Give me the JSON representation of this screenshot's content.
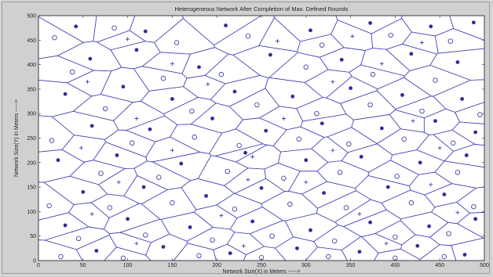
{
  "chart_data": {
    "type": "scatter",
    "title": "Heterogeneous Network After Completion of Max. Defined Rounds",
    "xlabel": "Network Size(X) in Meters ----->",
    "ylabel": "Network Size(Y) in Meters ----->",
    "xlim": [
      0,
      500
    ],
    "ylim": [
      0,
      500
    ],
    "xticks": [
      "0",
      "50",
      "100",
      "150",
      "200",
      "250",
      "300",
      "350",
      "400",
      "450",
      "500"
    ],
    "yticks": [
      "0",
      "50",
      "100",
      "150",
      "200",
      "250",
      "300",
      "350",
      "400",
      "450",
      "500"
    ],
    "grid": false,
    "series": [
      {
        "marker": "filled-circle",
        "points": [
          [
            42,
            478
          ],
          [
            120,
            468
          ],
          [
            210,
            480
          ],
          [
            305,
            470
          ],
          [
            372,
            485
          ],
          [
            440,
            478
          ],
          [
            488,
            486
          ],
          [
            58,
            412
          ],
          [
            110,
            430
          ],
          [
            180,
            395
          ],
          [
            260,
            420
          ],
          [
            340,
            410
          ],
          [
            418,
            422
          ],
          [
            470,
            405
          ],
          [
            30,
            340
          ],
          [
            95,
            355
          ],
          [
            150,
            330
          ],
          [
            220,
            345
          ],
          [
            285,
            335
          ],
          [
            350,
            352
          ],
          [
            408,
            338
          ],
          [
            475,
            330
          ],
          [
            60,
            275
          ],
          [
            125,
            268
          ],
          [
            195,
            290
          ],
          [
            255,
            265
          ],
          [
            318,
            280
          ],
          [
            385,
            270
          ],
          [
            445,
            285
          ],
          [
            490,
            262
          ],
          [
            22,
            205
          ],
          [
            88,
            215
          ],
          [
            160,
            198
          ],
          [
            232,
            220
          ],
          [
            300,
            205
          ],
          [
            362,
            212
          ],
          [
            428,
            200
          ],
          [
            480,
            215
          ],
          [
            50,
            140
          ],
          [
            118,
            150
          ],
          [
            188,
            132
          ],
          [
            250,
            148
          ],
          [
            320,
            138
          ],
          [
            392,
            150
          ],
          [
            455,
            135
          ],
          [
            30,
            72
          ],
          [
            100,
            85
          ],
          [
            170,
            68
          ],
          [
            240,
            80
          ],
          [
            305,
            62
          ],
          [
            372,
            78
          ],
          [
            438,
            70
          ],
          [
            490,
            85
          ],
          [
            65,
            20
          ],
          [
            140,
            28
          ],
          [
            215,
            15
          ],
          [
            290,
            25
          ],
          [
            360,
            18
          ],
          [
            425,
            30
          ],
          [
            478,
            12
          ]
        ]
      },
      {
        "marker": "open-circle",
        "points": [
          [
            18,
            455
          ],
          [
            85,
            475
          ],
          [
            155,
            445
          ],
          [
            235,
            458
          ],
          [
            318,
            440
          ],
          [
            395,
            460
          ],
          [
            462,
            448
          ],
          [
            38,
            385
          ],
          [
            140,
            372
          ],
          [
            205,
            380
          ],
          [
            300,
            395
          ],
          [
            375,
            380
          ],
          [
            445,
            368
          ],
          [
            75,
            310
          ],
          [
            172,
            305
          ],
          [
            245,
            318
          ],
          [
            312,
            300
          ],
          [
            372,
            318
          ],
          [
            430,
            305
          ],
          [
            495,
            298
          ],
          [
            15,
            245
          ],
          [
            105,
            240
          ],
          [
            175,
            252
          ],
          [
            225,
            235
          ],
          [
            292,
            248
          ],
          [
            348,
            238
          ],
          [
            410,
            248
          ],
          [
            465,
            240
          ],
          [
            70,
            178
          ],
          [
            135,
            170
          ],
          [
            212,
            182
          ],
          [
            275,
            168
          ],
          [
            338,
            180
          ],
          [
            402,
            172
          ],
          [
            470,
            180
          ],
          [
            12,
            112
          ],
          [
            80,
            108
          ],
          [
            150,
            118
          ],
          [
            220,
            105
          ],
          [
            282,
            115
          ],
          [
            345,
            108
          ],
          [
            418,
            118
          ],
          [
            488,
            110
          ],
          [
            45,
            45
          ],
          [
            120,
            52
          ],
          [
            195,
            42
          ],
          [
            262,
            50
          ],
          [
            332,
            40
          ],
          [
            400,
            48
          ],
          [
            460,
            55
          ],
          [
            25,
            8
          ],
          [
            95,
            5
          ],
          [
            180,
            10
          ],
          [
            250,
            6
          ],
          [
            325,
            8
          ],
          [
            400,
            5
          ],
          [
            455,
            8
          ]
        ]
      },
      {
        "marker": "plus",
        "points": [
          [
            100,
            452
          ],
          [
            268,
            448
          ],
          [
            352,
            458
          ],
          [
            430,
            445
          ],
          [
            55,
            365
          ],
          [
            190,
            360
          ],
          [
            330,
            365
          ],
          [
            110,
            290
          ],
          [
            275,
            290
          ],
          [
            420,
            285
          ],
          [
            48,
            230
          ],
          [
            150,
            225
          ],
          [
            330,
            225
          ],
          [
            450,
            230
          ],
          [
            90,
            160
          ],
          [
            235,
            165
          ],
          [
            300,
            160
          ],
          [
            440,
            155
          ],
          [
            60,
            95
          ],
          [
            205,
            92
          ],
          [
            360,
            95
          ],
          [
            470,
            98
          ],
          [
            110,
            35
          ],
          [
            230,
            30
          ],
          [
            390,
            35
          ],
          [
            150,
            402
          ],
          [
            385,
            402
          ],
          [
            240,
            212
          ]
        ]
      }
    ]
  },
  "colors": {
    "plot_background": "#ffffff",
    "figure_background": "#d0d0d0",
    "voronoi_edges": "#3b3bb0",
    "markers": "#2d2d9a"
  }
}
